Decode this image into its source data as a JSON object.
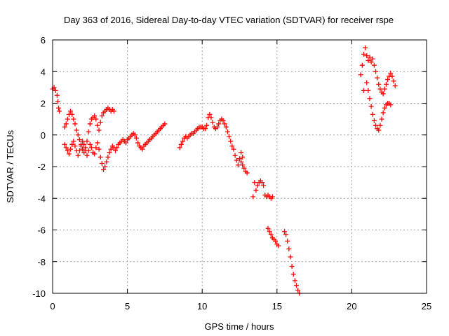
{
  "chart_data": {
    "type": "scatter",
    "title": "Day 363 of 2016, Sidereal Day-to-day VTEC variation (SDTVAR) for receiver rspe",
    "xlabel": "GPS time / hours",
    "ylabel": "SDTVAR / TECUs",
    "xlim": [
      0,
      25
    ],
    "ylim": [
      -10,
      6
    ],
    "xticks": [
      0,
      5,
      10,
      15,
      20,
      25
    ],
    "yticks": [
      -10,
      -8,
      -6,
      -4,
      -2,
      0,
      2,
      4,
      6
    ],
    "grid": true,
    "marker": "plus",
    "color": "#ff0000",
    "series": [
      {
        "name": "SDTVAR",
        "points": [
          [
            0.0,
            2.9
          ],
          [
            0.1,
            3.0
          ],
          [
            0.2,
            2.8
          ],
          [
            0.3,
            2.5
          ],
          [
            0.35,
            2.1
          ],
          [
            0.4,
            1.7
          ],
          [
            0.45,
            1.5
          ],
          [
            0.8,
            0.5
          ],
          [
            0.9,
            0.7
          ],
          [
            1.0,
            1.0
          ],
          [
            1.1,
            1.3
          ],
          [
            1.2,
            1.5
          ],
          [
            1.3,
            1.3
          ],
          [
            1.4,
            1.0
          ],
          [
            1.5,
            0.7
          ],
          [
            1.6,
            0.3
          ],
          [
            1.7,
            0.0
          ],
          [
            1.8,
            -0.3
          ],
          [
            1.9,
            -0.6
          ],
          [
            2.0,
            -0.9
          ],
          [
            2.1,
            -1.1
          ],
          [
            2.2,
            -0.8
          ],
          [
            2.3,
            -0.4
          ],
          [
            2.4,
            0.2
          ],
          [
            2.5,
            0.7
          ],
          [
            2.6,
            1.0
          ],
          [
            2.7,
            1.1
          ],
          [
            2.8,
            1.2
          ],
          [
            2.9,
            1.0
          ],
          [
            3.0,
            0.6
          ],
          [
            3.1,
            0.3
          ],
          [
            3.2,
            0.8
          ],
          [
            3.3,
            1.2
          ],
          [
            3.4,
            1.4
          ],
          [
            3.5,
            1.5
          ],
          [
            3.6,
            1.6
          ],
          [
            3.7,
            1.7
          ],
          [
            3.8,
            1.6
          ],
          [
            3.9,
            1.5
          ],
          [
            4.0,
            1.6
          ],
          [
            4.1,
            1.5
          ],
          [
            0.8,
            -0.6
          ],
          [
            0.9,
            -0.8
          ],
          [
            1.0,
            -1.0
          ],
          [
            1.1,
            -1.2
          ],
          [
            1.2,
            -0.9
          ],
          [
            1.3,
            -0.6
          ],
          [
            1.4,
            -0.4
          ],
          [
            1.5,
            -0.7
          ],
          [
            1.6,
            -1.0
          ],
          [
            1.7,
            -1.3
          ],
          [
            1.8,
            -1.0
          ],
          [
            1.9,
            -0.7
          ],
          [
            2.0,
            -0.4
          ],
          [
            2.1,
            -0.6
          ],
          [
            2.2,
            -1.0
          ],
          [
            2.3,
            -1.3
          ],
          [
            2.4,
            -1.0
          ],
          [
            2.5,
            -0.6
          ],
          [
            2.6,
            -0.8
          ],
          [
            2.7,
            -1.1
          ],
          [
            2.8,
            -1.2
          ],
          [
            2.9,
            -0.8
          ],
          [
            3.0,
            -0.5
          ],
          [
            3.1,
            -0.9
          ],
          [
            3.2,
            -1.4
          ],
          [
            3.3,
            -1.8
          ],
          [
            3.4,
            -2.2
          ],
          [
            3.5,
            -2.0
          ],
          [
            3.6,
            -1.7
          ],
          [
            3.7,
            -1.4
          ],
          [
            3.8,
            -1.1
          ],
          [
            3.9,
            -0.9
          ],
          [
            4.0,
            -0.7
          ],
          [
            4.1,
            -0.8
          ],
          [
            4.2,
            -1.0
          ],
          [
            4.3,
            -0.8
          ],
          [
            4.4,
            -0.6
          ],
          [
            4.5,
            -0.5
          ],
          [
            4.6,
            -0.4
          ],
          [
            4.7,
            -0.3
          ],
          [
            4.8,
            -0.4
          ],
          [
            4.9,
            -0.5
          ],
          [
            5.0,
            -0.3
          ],
          [
            5.1,
            -0.2
          ],
          [
            5.2,
            -0.1
          ],
          [
            5.3,
            0.0
          ],
          [
            5.4,
            0.1
          ],
          [
            5.5,
            0.0
          ],
          [
            5.6,
            -0.2
          ],
          [
            5.7,
            -0.5
          ],
          [
            5.8,
            -0.7
          ],
          [
            5.9,
            -0.8
          ],
          [
            6.0,
            -0.9
          ],
          [
            6.1,
            -0.7
          ],
          [
            6.2,
            -0.6
          ],
          [
            6.3,
            -0.5
          ],
          [
            6.4,
            -0.4
          ],
          [
            6.5,
            -0.3
          ],
          [
            6.6,
            -0.2
          ],
          [
            6.7,
            -0.1
          ],
          [
            6.8,
            0.0
          ],
          [
            6.9,
            0.1
          ],
          [
            7.0,
            0.2
          ],
          [
            7.1,
            0.3
          ],
          [
            7.2,
            0.4
          ],
          [
            7.3,
            0.5
          ],
          [
            7.4,
            0.6
          ],
          [
            7.5,
            0.7
          ],
          [
            8.5,
            -0.8
          ],
          [
            8.6,
            -0.6
          ],
          [
            8.7,
            -0.4
          ],
          [
            8.8,
            -0.2
          ],
          [
            8.9,
            -0.1
          ],
          [
            9.0,
            -0.2
          ],
          [
            9.1,
            -0.1
          ],
          [
            9.2,
            0.0
          ],
          [
            9.3,
            0.1
          ],
          [
            9.4,
            0.1
          ],
          [
            9.5,
            0.2
          ],
          [
            9.6,
            0.3
          ],
          [
            9.7,
            0.4
          ],
          [
            9.8,
            0.5
          ],
          [
            9.9,
            0.5
          ],
          [
            10.0,
            0.5
          ],
          [
            10.1,
            0.4
          ],
          [
            10.2,
            0.4
          ],
          [
            10.3,
            0.6
          ],
          [
            10.4,
            1.1
          ],
          [
            10.5,
            1.3
          ],
          [
            10.6,
            1.1
          ],
          [
            10.7,
            0.8
          ],
          [
            10.8,
            0.5
          ],
          [
            10.9,
            0.4
          ],
          [
            11.0,
            0.5
          ],
          [
            11.1,
            0.7
          ],
          [
            11.2,
            0.9
          ],
          [
            11.3,
            1.0
          ],
          [
            11.4,
            0.9
          ],
          [
            11.5,
            0.7
          ],
          [
            11.6,
            0.5
          ],
          [
            11.7,
            0.2
          ],
          [
            11.8,
            -0.1
          ],
          [
            11.9,
            -0.4
          ],
          [
            12.0,
            -0.7
          ],
          [
            12.1,
            -0.9
          ],
          [
            12.2,
            -1.3
          ],
          [
            12.3,
            -1.6
          ],
          [
            12.4,
            -1.9
          ],
          [
            12.5,
            -1.5
          ],
          [
            12.6,
            -1.7
          ],
          [
            12.7,
            -1.9
          ],
          [
            12.8,
            -2.1
          ],
          [
            12.9,
            -2.3
          ],
          [
            13.0,
            -2.4
          ],
          [
            12.6,
            -1.1
          ],
          [
            12.7,
            -1.4
          ],
          [
            13.5,
            -3.0
          ],
          [
            13.6,
            -3.5
          ],
          [
            13.7,
            -3.2
          ],
          [
            13.8,
            -3.0
          ],
          [
            13.9,
            -2.9
          ],
          [
            14.0,
            -3.0
          ],
          [
            14.1,
            -3.2
          ],
          [
            14.2,
            -3.8
          ],
          [
            14.3,
            -3.9
          ],
          [
            14.4,
            -3.8
          ],
          [
            14.5,
            -3.9
          ],
          [
            14.6,
            -4.0
          ],
          [
            14.7,
            -3.9
          ],
          [
            13.4,
            -3.9
          ],
          [
            14.4,
            -5.9
          ],
          [
            14.5,
            -6.1
          ],
          [
            14.6,
            -6.3
          ],
          [
            14.7,
            -6.5
          ],
          [
            14.8,
            -6.6
          ],
          [
            14.9,
            -6.7
          ],
          [
            15.0,
            -6.9
          ],
          [
            15.1,
            -7.0
          ],
          [
            15.5,
            -6.1
          ],
          [
            15.6,
            -6.3
          ],
          [
            15.7,
            -6.7
          ],
          [
            15.8,
            -7.2
          ],
          [
            15.9,
            -7.7
          ],
          [
            16.0,
            -8.3
          ],
          [
            16.1,
            -8.8
          ],
          [
            16.2,
            -9.2
          ],
          [
            16.3,
            -9.5
          ],
          [
            16.4,
            -9.8
          ],
          [
            16.5,
            -10.0
          ],
          [
            20.6,
            3.8
          ],
          [
            20.7,
            4.4
          ],
          [
            20.8,
            5.1
          ],
          [
            20.9,
            5.5
          ],
          [
            21.0,
            5.0
          ],
          [
            21.1,
            4.7
          ],
          [
            21.2,
            4.9
          ],
          [
            21.3,
            4.6
          ],
          [
            21.4,
            4.8
          ],
          [
            21.5,
            4.4
          ],
          [
            21.6,
            4.0
          ],
          [
            21.7,
            3.6
          ],
          [
            21.8,
            3.2
          ],
          [
            21.9,
            2.9
          ],
          [
            22.0,
            2.7
          ],
          [
            22.1,
            2.6
          ],
          [
            22.2,
            2.9
          ],
          [
            22.3,
            3.2
          ],
          [
            22.4,
            3.5
          ],
          [
            22.5,
            3.7
          ],
          [
            22.6,
            3.9
          ],
          [
            22.7,
            3.7
          ],
          [
            22.8,
            3.4
          ],
          [
            22.9,
            3.1
          ],
          [
            21.0,
            3.3
          ],
          [
            21.1,
            2.8
          ],
          [
            21.2,
            2.3
          ],
          [
            21.3,
            1.8
          ],
          [
            21.4,
            1.3
          ],
          [
            21.5,
            0.9
          ],
          [
            21.6,
            0.6
          ],
          [
            21.7,
            0.4
          ],
          [
            21.8,
            0.3
          ],
          [
            21.9,
            0.6
          ],
          [
            22.0,
            1.0
          ],
          [
            22.1,
            1.4
          ],
          [
            22.2,
            1.7
          ],
          [
            22.3,
            1.9
          ],
          [
            22.4,
            2.0
          ],
          [
            22.5,
            2.0
          ],
          [
            22.6,
            1.9
          ],
          [
            20.8,
            2.8
          ]
        ]
      }
    ]
  }
}
